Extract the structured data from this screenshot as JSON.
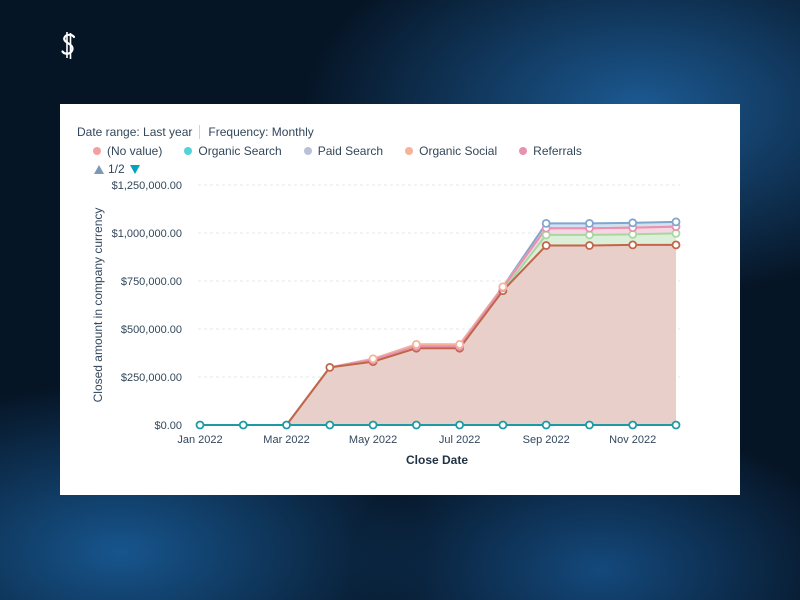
{
  "logo_icon": "dollar-s-logo",
  "filters": {
    "date_range": "Date range: Last year",
    "frequency": "Frequency: Monthly"
  },
  "legend": [
    {
      "label": "(No value)",
      "color": "#f2a0a0"
    },
    {
      "label": "Organic Search",
      "color": "#51d3d9"
    },
    {
      "label": "Paid Search",
      "color": "#b9c1d9"
    },
    {
      "label": "Organic Social",
      "color": "#f5b39c"
    },
    {
      "label": "Referrals",
      "color": "#ea90b1"
    }
  ],
  "pager": {
    "label": "1/2"
  },
  "chart_data": {
    "type": "area",
    "stacked": true,
    "categories": [
      "Jan 2022",
      "Feb 2022",
      "Mar 2022",
      "Apr 2022",
      "May 2022",
      "Jun 2022",
      "Jul 2022",
      "Aug 2022",
      "Sep 2022",
      "Oct 2022",
      "Nov 2022",
      "Dec 2022"
    ],
    "x_tick_labels": [
      "Jan 2022",
      "",
      "Mar 2022",
      "",
      "May 2022",
      "",
      "Jul 2022",
      "",
      "Sep 2022",
      "",
      "Nov 2022",
      ""
    ],
    "y_ticks": [
      "$0.00",
      "$250,000.00",
      "$500,000.00",
      "$750,000.00",
      "$1,000,000.00",
      "$1,250,000.00"
    ],
    "ylim": [
      0,
      1250000
    ],
    "ylabel": "Closed amount in company currency",
    "xlabel": "Close Date",
    "grid": true,
    "series": [
      {
        "name": "(No value)",
        "values": [
          0,
          0,
          0,
          300000,
          330000,
          400000,
          400000,
          700000,
          935000,
          935000,
          938000,
          938000
        ],
        "line": "#c2654a",
        "fill": "#e8cfc9"
      },
      {
        "name": "Paid Search",
        "values": [
          0,
          0,
          0,
          0,
          0,
          0,
          0,
          0,
          55000,
          55000,
          55000,
          60000
        ],
        "line": "#a8d7a0",
        "fill": "#dcefd8"
      },
      {
        "name": "Referrals",
        "values": [
          0,
          0,
          0,
          0,
          10000,
          10000,
          10000,
          15000,
          35000,
          35000,
          35000,
          35000
        ],
        "line": "#ea90b1",
        "fill": "#f6d6e3"
      },
      {
        "name": "Organic Social",
        "values": [
          0,
          0,
          0,
          0,
          5000,
          10000,
          10000,
          5000,
          0,
          0,
          0,
          0
        ],
        "line": "#f5b39c",
        "fill": "#f9e1d8"
      },
      {
        "name": "Organic Search",
        "values": [
          0,
          0,
          0,
          0,
          0,
          0,
          0,
          0,
          25000,
          25000,
          25000,
          25000
        ],
        "line": "#7fa6cf",
        "fill": "#d3e2f0"
      }
    ],
    "baseline_series": {
      "name": "Organic Search",
      "color": "#1c9aa6"
    }
  }
}
